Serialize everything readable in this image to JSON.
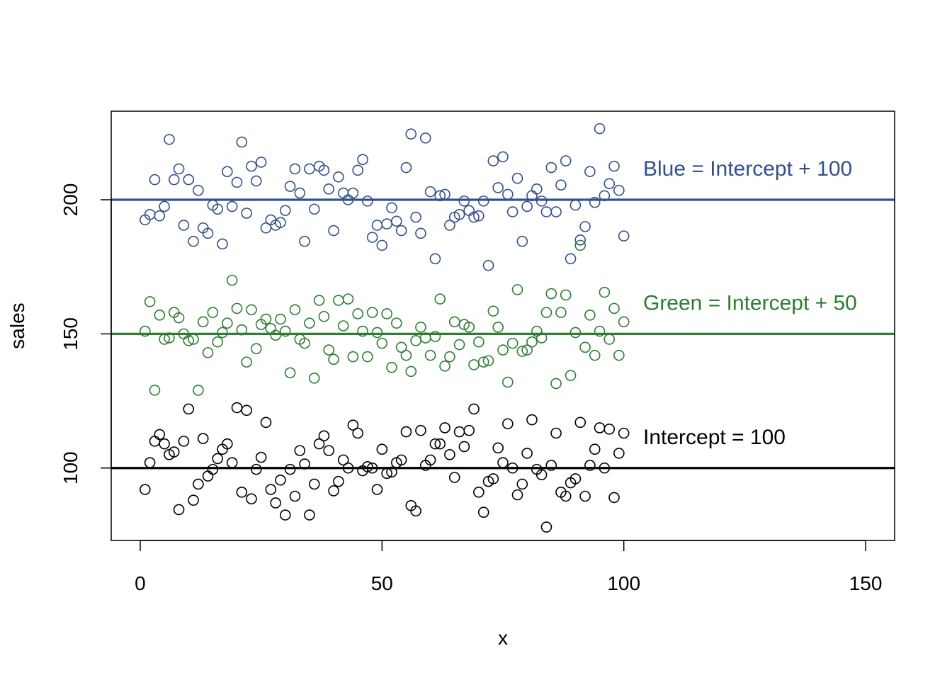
{
  "chart_data": {
    "type": "scatter",
    "xlabel": "x",
    "ylabel": "sales",
    "xlim": [
      -6,
      156
    ],
    "ylim": [
      73,
      233
    ],
    "x_ticks": [
      0,
      50,
      100,
      150
    ],
    "y_ticks": [
      100,
      150,
      200
    ],
    "grid": false,
    "legend": "none",
    "series": [
      {
        "key": "black",
        "color": "#000000",
        "x": [
          1,
          2,
          3,
          4,
          5,
          6,
          7,
          8,
          9,
          10,
          11,
          12,
          13,
          14,
          15,
          16,
          17,
          18,
          19,
          20,
          21,
          22,
          23,
          24,
          25,
          26,
          27,
          28,
          29,
          30,
          31,
          32,
          33,
          34,
          35,
          36,
          37,
          38,
          39,
          40,
          41,
          42,
          43,
          44,
          45,
          46,
          47,
          48,
          49,
          50,
          51,
          52,
          53,
          54,
          55,
          56,
          57,
          58,
          59,
          60,
          61,
          62,
          63,
          64,
          65,
          66,
          67,
          68,
          69,
          70,
          71,
          72,
          73,
          74,
          75,
          76,
          77,
          78,
          79,
          80,
          81,
          82,
          83,
          84,
          85,
          86,
          87,
          88,
          89,
          90,
          91,
          92,
          93,
          94,
          95,
          96,
          97,
          98,
          99,
          100
        ],
        "y": [
          92,
          102,
          110,
          112.5,
          109,
          105,
          106,
          84.5,
          110,
          122,
          88,
          94,
          111,
          97,
          99.5,
          103.5,
          107,
          109,
          102,
          122.5,
          91,
          121.5,
          88.5,
          99.5,
          104,
          117,
          92,
          87,
          95.5,
          82.5,
          99.5,
          89.5,
          106.5,
          101.5,
          82.5,
          94,
          109,
          112,
          106.5,
          91.5,
          95,
          103,
          100,
          116,
          113,
          99,
          100.5,
          100,
          92,
          107,
          98,
          98.5,
          102,
          103,
          113.5,
          86,
          84,
          114,
          101,
          103,
          109,
          109,
          115,
          105,
          96.5,
          113.5,
          108,
          114,
          122,
          91,
          83.5,
          95,
          96,
          107.5,
          102,
          116.5,
          100,
          90,
          94,
          105.5,
          118,
          99.5,
          97.5,
          78,
          101,
          113,
          91,
          89.5,
          94.5,
          96,
          117,
          89.5,
          101,
          107,
          115,
          100,
          114.5,
          89,
          105.5,
          113
        ]
      },
      {
        "key": "green",
        "color": "#2e7d32",
        "x": [
          1,
          2,
          3,
          4,
          5,
          6,
          7,
          8,
          9,
          10,
          11,
          12,
          13,
          14,
          15,
          16,
          17,
          18,
          19,
          20,
          21,
          22,
          23,
          24,
          25,
          26,
          27,
          28,
          29,
          30,
          31,
          32,
          33,
          34,
          35,
          36,
          37,
          38,
          39,
          40,
          41,
          42,
          43,
          44,
          45,
          46,
          47,
          48,
          49,
          50,
          51,
          52,
          53,
          54,
          55,
          56,
          57,
          58,
          59,
          60,
          61,
          62,
          63,
          64,
          65,
          66,
          67,
          68,
          69,
          70,
          71,
          72,
          73,
          74,
          75,
          76,
          77,
          78,
          79,
          80,
          81,
          82,
          83,
          84,
          85,
          86,
          87,
          88,
          89,
          90,
          91,
          92,
          93,
          94,
          95,
          96,
          97,
          98,
          99,
          100
        ],
        "y": [
          151,
          162,
          129,
          157,
          148,
          148.5,
          158,
          156,
          150,
          147.5,
          148,
          129,
          154.5,
          143,
          158,
          147,
          150.5,
          154,
          170,
          159.5,
          151.5,
          139.5,
          159,
          144.5,
          153.5,
          155.5,
          152,
          149.5,
          155.5,
          151,
          135.5,
          159,
          148,
          146.5,
          154,
          133.5,
          162.5,
          156.5,
          144,
          140.5,
          162.5,
          153,
          163,
          141.5,
          157.5,
          151,
          141.5,
          158,
          150.5,
          146.5,
          157.5,
          137.5,
          154,
          145,
          142,
          136,
          147.5,
          152.5,
          148.5,
          142,
          149,
          163,
          138,
          141.5,
          154.5,
          146,
          153.5,
          152.5,
          138.5,
          147,
          139.5,
          140,
          158.5,
          152.5,
          144,
          132,
          146.5,
          166.5,
          143.5,
          144,
          147,
          151,
          148.5,
          158,
          165,
          131.5,
          158,
          164.5,
          134.5,
          150.5,
          183,
          145,
          157,
          142,
          151,
          165.5,
          148,
          159.5,
          142,
          154.5
        ]
      },
      {
        "key": "blue",
        "color": "#34508a",
        "x": [
          1,
          2,
          3,
          4,
          5,
          6,
          7,
          8,
          9,
          10,
          11,
          12,
          13,
          14,
          15,
          16,
          17,
          18,
          19,
          20,
          21,
          22,
          23,
          24,
          25,
          26,
          27,
          28,
          29,
          30,
          31,
          32,
          33,
          34,
          35,
          36,
          37,
          38,
          39,
          40,
          41,
          42,
          43,
          44,
          45,
          46,
          47,
          48,
          49,
          50,
          51,
          52,
          53,
          54,
          55,
          56,
          57,
          58,
          59,
          60,
          61,
          62,
          63,
          64,
          65,
          66,
          67,
          68,
          69,
          70,
          71,
          72,
          73,
          74,
          75,
          76,
          77,
          78,
          79,
          80,
          81,
          82,
          83,
          84,
          85,
          86,
          87,
          88,
          89,
          90,
          91,
          92,
          93,
          94,
          95,
          96,
          97,
          98,
          99,
          100
        ],
        "y": [
          192.5,
          194.5,
          207.5,
          194,
          197.5,
          222.5,
          207.5,
          211.5,
          190.5,
          207.5,
          184.5,
          203.5,
          189.5,
          187.5,
          198,
          196.5,
          183.5,
          210.5,
          197.5,
          206.5,
          221.5,
          195,
          212.5,
          207,
          214,
          189.5,
          192.5,
          190.5,
          191.5,
          196,
          205,
          211.5,
          202.5,
          184.5,
          211.5,
          196.5,
          212.5,
          211,
          204,
          188.5,
          208.5,
          202.5,
          200,
          202.5,
          211,
          215,
          199.5,
          186,
          190.5,
          183,
          191,
          197,
          192,
          188.5,
          212,
          224.5,
          193.5,
          187.5,
          223,
          203,
          178,
          201.5,
          202,
          190.5,
          193.5,
          194.5,
          199.5,
          196,
          193.5,
          194,
          199.5,
          175.5,
          214.5,
          204.5,
          216,
          202,
          195.5,
          208,
          184.5,
          197.5,
          201.5,
          204,
          199.5,
          195.5,
          212,
          195.5,
          205.5,
          214.5,
          178,
          198,
          185,
          190,
          210.5,
          199,
          226.5,
          201.5,
          206,
          212.5,
          203.5,
          186.5
        ]
      }
    ],
    "reference_lines": [
      {
        "key": "blue",
        "y": 200,
        "color": "#34508a"
      },
      {
        "key": "green",
        "y": 150,
        "color": "#2e7d32"
      },
      {
        "key": "black",
        "y": 100,
        "color": "#000000"
      }
    ],
    "annotations": [
      {
        "key": "blue",
        "text": "Blue = Intercept + 100",
        "x": 104,
        "y": 211,
        "color": "#34508a"
      },
      {
        "key": "green",
        "text": "Green = Intercept + 50",
        "x": 104,
        "y": 161,
        "color": "#2e7d32"
      },
      {
        "key": "black",
        "text": "Intercept = 100",
        "x": 104,
        "y": 111,
        "color": "#000000"
      }
    ]
  }
}
